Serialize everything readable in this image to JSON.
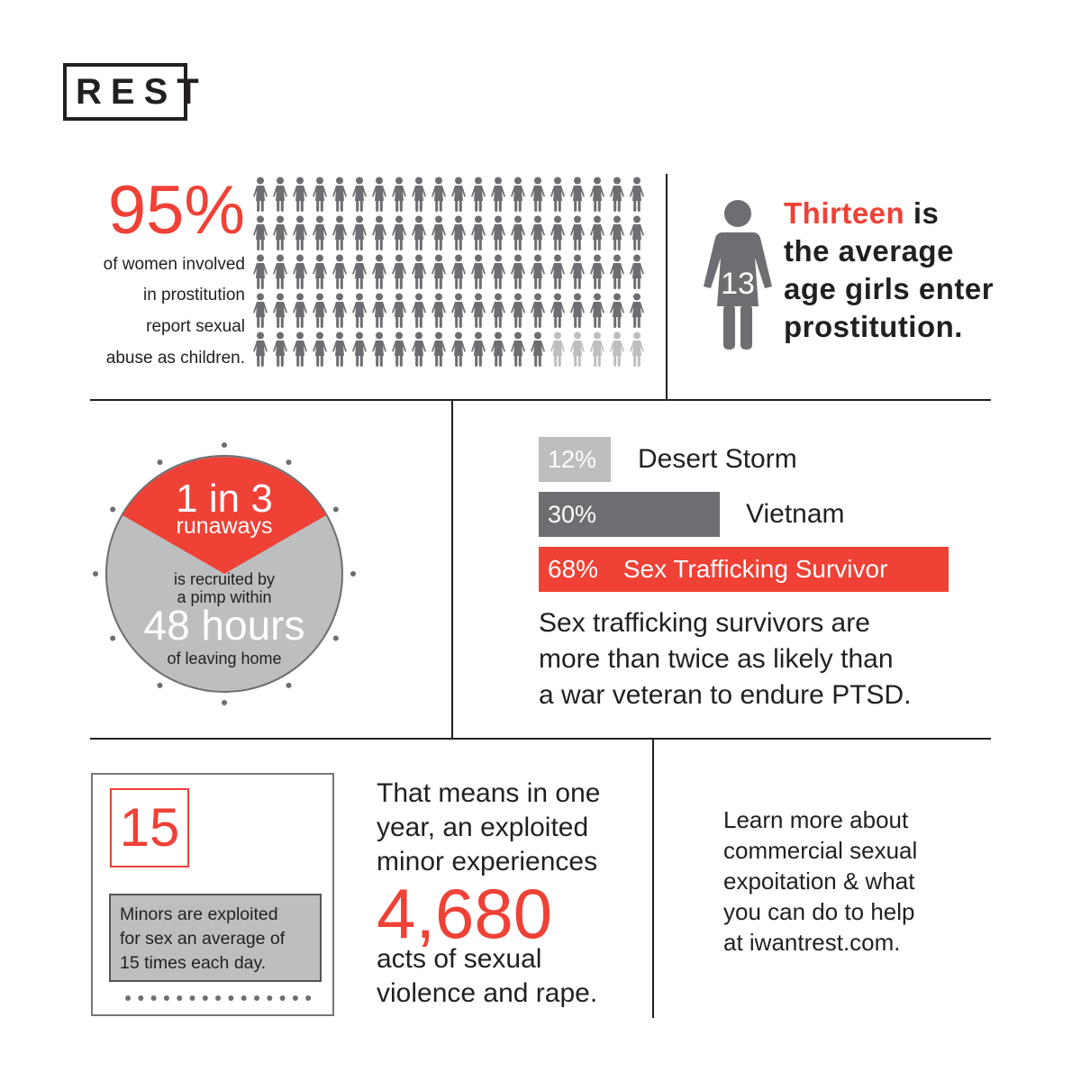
{
  "logo": {
    "text": "REST"
  },
  "stat95": {
    "value": "95%",
    "lines": [
      "of women involved",
      "in prostitution",
      "report sexual",
      "abuse as children."
    ],
    "pictogram": {
      "total": 100,
      "highlighted": 95
    }
  },
  "stat13": {
    "icon_number": "13",
    "highlight": "Thirteen",
    "rest_first_line": " is",
    "lines": [
      "the average",
      "age girls enter",
      "prostitution."
    ]
  },
  "runaways": {
    "headline": "1 in 3",
    "subhead": "runaways",
    "line1": "is recruited by",
    "line2": "a pimp within",
    "hours": "48 hours",
    "line3": "of leaving home"
  },
  "ptsd": {
    "bars": [
      {
        "percent": "12%",
        "label": "Desert Storm",
        "value": 12
      },
      {
        "percent": "30%",
        "label": "Vietnam",
        "value": 30
      },
      {
        "percent": "68%",
        "label": "Sex Trafficking Survivor",
        "value": 68
      }
    ],
    "lines": [
      "Sex trafficking survivors are",
      "more than twice as likely than",
      "a war veteran to endure PTSD."
    ]
  },
  "daily": {
    "number": "15",
    "caption_lines": [
      "Minors are exploited",
      "for sex an average of",
      "15 times each day."
    ]
  },
  "yearly": {
    "intro_lines": [
      "That means in one",
      "year, an exploited",
      "minor experiences"
    ],
    "number": "4,680",
    "outro_lines": [
      "acts of sexual",
      "violence and rape."
    ]
  },
  "learn_more": {
    "lines": [
      "Learn more about",
      "commercial sexual",
      "expoitation & what",
      "you can do to help",
      "at iwantrest.com."
    ]
  },
  "colors": {
    "accent": "#ef4136",
    "dark_gray": "#6d6e71",
    "light_gray": "#bcbec0",
    "text": "#231f20"
  }
}
